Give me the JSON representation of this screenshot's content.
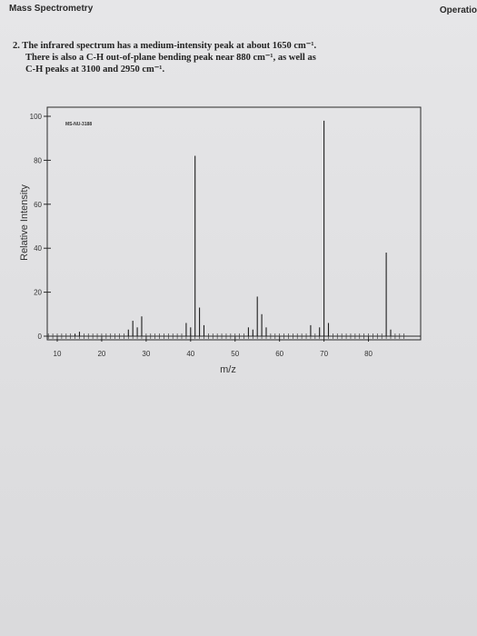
{
  "header": {
    "title": "Mass Spectrometry",
    "right_text": "Operatio"
  },
  "question": {
    "line1": "2. The infrared spectrum has a medium-intensity peak at about 1650 cm⁻¹.",
    "line2": "There is also a C-H out-of-plane bending peak near 880 cm⁻¹, as well as",
    "line3": "C-H peaks at 3100 and 2950 cm⁻¹."
  },
  "chart_data": {
    "type": "bar",
    "title": "",
    "sample_id": "MS-NU-3188",
    "xlabel": "m/z",
    "ylabel": "Relative Intensity",
    "xlim": [
      5,
      88
    ],
    "ylim": [
      0,
      105
    ],
    "xticks": [
      10,
      20,
      30,
      40,
      50,
      60,
      70,
      80
    ],
    "yticks": [
      0,
      20,
      40,
      60,
      80,
      100
    ],
    "grid": false,
    "peaks": [
      {
        "mz": 14,
        "intensity": 1
      },
      {
        "mz": 15,
        "intensity": 2
      },
      {
        "mz": 26,
        "intensity": 3
      },
      {
        "mz": 27,
        "intensity": 7
      },
      {
        "mz": 28,
        "intensity": 4
      },
      {
        "mz": 29,
        "intensity": 9
      },
      {
        "mz": 39,
        "intensity": 6
      },
      {
        "mz": 40,
        "intensity": 4
      },
      {
        "mz": 41,
        "intensity": 82
      },
      {
        "mz": 42,
        "intensity": 13
      },
      {
        "mz": 43,
        "intensity": 5
      },
      {
        "mz": 53,
        "intensity": 4
      },
      {
        "mz": 54,
        "intensity": 3
      },
      {
        "mz": 55,
        "intensity": 18
      },
      {
        "mz": 56,
        "intensity": 10
      },
      {
        "mz": 57,
        "intensity": 4
      },
      {
        "mz": 67,
        "intensity": 5
      },
      {
        "mz": 69,
        "intensity": 4
      },
      {
        "mz": 70,
        "intensity": 98
      },
      {
        "mz": 71,
        "intensity": 6
      },
      {
        "mz": 84,
        "intensity": 38
      },
      {
        "mz": 85,
        "intensity": 3
      }
    ]
  }
}
